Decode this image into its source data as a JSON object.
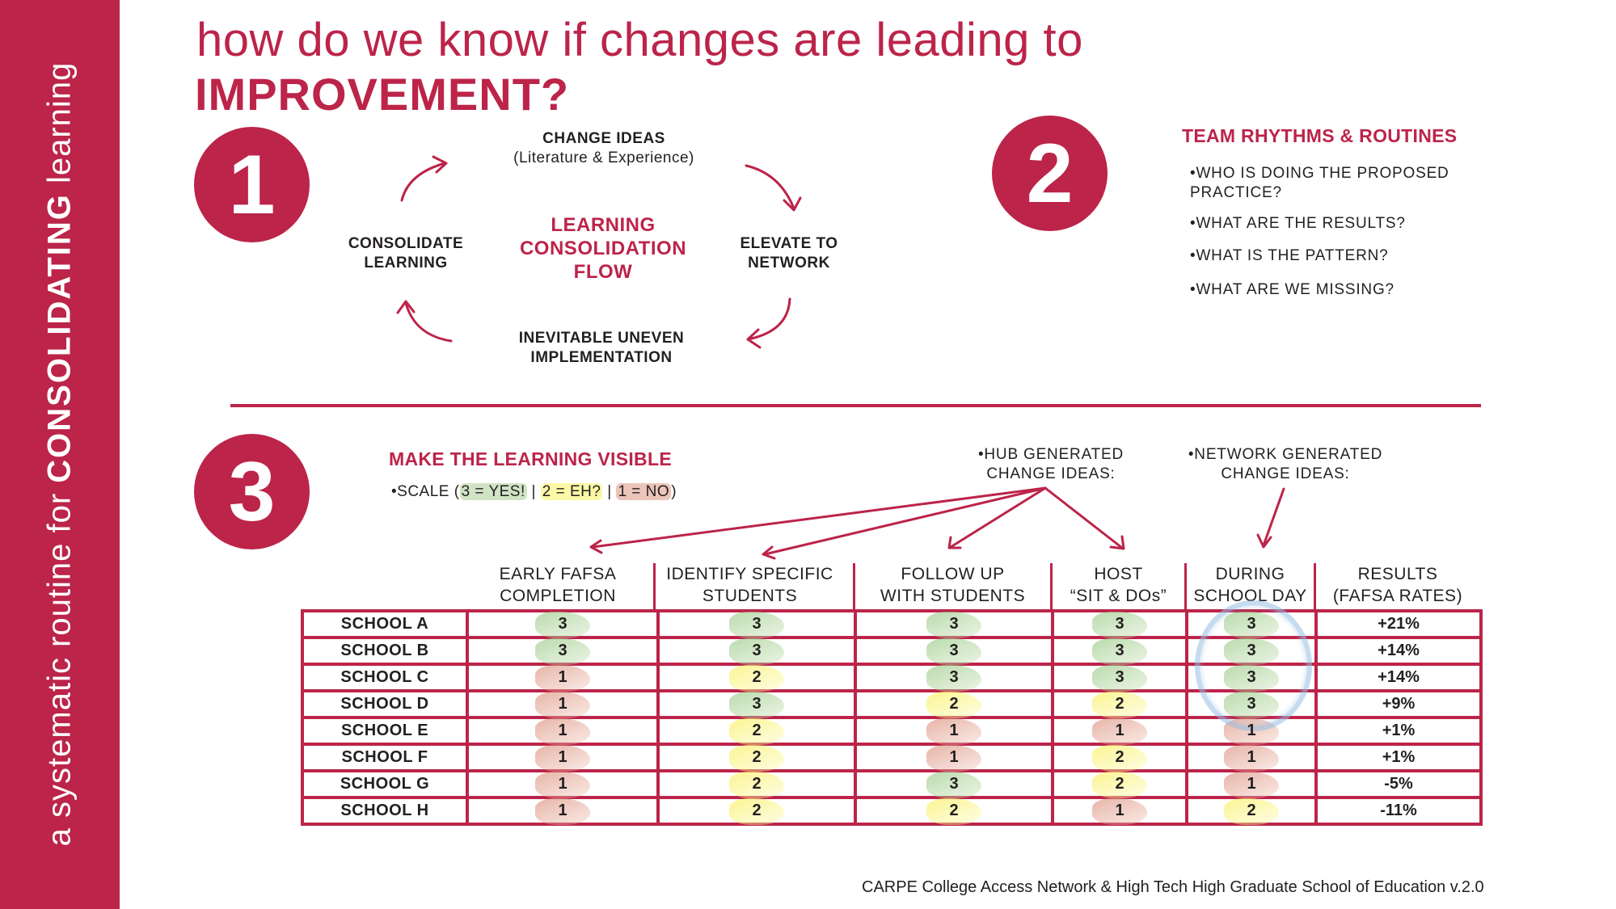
{
  "sidebar": {
    "text_prefix": "a systematic routine for ",
    "text_emphasis": "CONSOLIDATING",
    "text_suffix": " learning",
    "color": "#bc2449"
  },
  "title": {
    "line1": "how do we know if changes are leading to",
    "line2": "IMPROVEMENT?"
  },
  "section1": {
    "number": "1",
    "center_line1": "LEARNING",
    "center_line2": "CONSOLIDATION",
    "center_line3": "FLOW",
    "nodes": {
      "top_line1": "CHANGE IDEAS",
      "top_line2": "(Literature & Experience)",
      "right_line1": "ELEVATE TO",
      "right_line2": "NETWORK",
      "bottom_line1": "INEVITABLE UNEVEN",
      "bottom_line2": "IMPLEMENTATION",
      "left_line1": "CONSOLIDATE",
      "left_line2": "LEARNING"
    },
    "arrow_icon": "curved-arrow-clockwise"
  },
  "section2": {
    "number": "2",
    "title": "TEAM RHYTHMS & ROUTINES",
    "items": [
      {
        "line1": "•WHO IS DOING THE PROPOSED",
        "line2": "PRACTICE?"
      },
      {
        "line1": "•WHAT ARE THE RESULTS?"
      },
      {
        "line1": "•WHAT IS THE PATTERN?"
      },
      {
        "line1": "•WHAT ARE WE MISSING?"
      }
    ]
  },
  "section3": {
    "number": "3",
    "title": "MAKE THE LEARNING VISIBLE",
    "scale": {
      "prefix": "•SCALE (",
      "three": "3 = YES!",
      "sep1": " | ",
      "two": "2 = EH?",
      "sep2": " | ",
      "one": "1 = NO",
      "suffix": ")"
    },
    "hub_label_line1": "•HUB GENERATED",
    "hub_label_line2": "CHANGE IDEAS:",
    "network_label_line1": "•NETWORK GENERATED",
    "network_label_line2": "CHANGE IDEAS:"
  },
  "table": {
    "columns": [
      {
        "line1": "EARLY FAFSA",
        "line2": "COMPLETION",
        "source": "hub"
      },
      {
        "line1": "IDENTIFY SPECIFIC",
        "line2": "STUDENTS",
        "source": "hub"
      },
      {
        "line1": "FOLLOW UP",
        "line2": "WITH STUDENTS",
        "source": "hub"
      },
      {
        "line1": "HOST",
        "line2": "“SIT & DOs”",
        "source": "hub"
      },
      {
        "line1": "DURING",
        "line2": "SCHOOL DAY",
        "source": "network"
      },
      {
        "line1": "RESULTS",
        "line2": "(FAFSA RATES)",
        "source": "results"
      }
    ],
    "rows": [
      {
        "school": "SCHOOL A",
        "scores": [
          "3",
          "3",
          "3",
          "3",
          "3"
        ],
        "result": "+21%"
      },
      {
        "school": "SCHOOL B",
        "scores": [
          "3",
          "3",
          "3",
          "3",
          "3"
        ],
        "result": "+14%"
      },
      {
        "school": "SCHOOL C",
        "scores": [
          "1",
          "2",
          "3",
          "3",
          "3"
        ],
        "result": "+14%"
      },
      {
        "school": "SCHOOL D",
        "scores": [
          "1",
          "3",
          "2",
          "2",
          "3"
        ],
        "result": "+9%"
      },
      {
        "school": "SCHOOL E",
        "scores": [
          "1",
          "2",
          "1",
          "1",
          "1"
        ],
        "result": "+1%"
      },
      {
        "school": "SCHOOL F",
        "scores": [
          "1",
          "2",
          "1",
          "2",
          "1"
        ],
        "result": "+1%"
      },
      {
        "school": "SCHOOL G",
        "scores": [
          "1",
          "2",
          "3",
          "2",
          "1"
        ],
        "result": "-5%"
      },
      {
        "school": "SCHOOL H",
        "scores": [
          "1",
          "2",
          "2",
          "1",
          "2"
        ],
        "result": "-11%"
      }
    ],
    "score_colors": {
      "3": "#a9cf96",
      "2": "#f6ef6c",
      "1": "#d9897a"
    },
    "highlight": {
      "column": "DURING SCHOOL DAY",
      "rows": [
        "SCHOOL A",
        "SCHOOL B",
        "SCHOOL C",
        "SCHOOL D"
      ],
      "color": "#9ec1e3"
    }
  },
  "footer": {
    "credit": "CARPE College Access Network & High Tech High Graduate School of Education v.2.0"
  },
  "colors": {
    "accent": "#bc2449",
    "text": "#231f20",
    "background": "#ffffff"
  }
}
